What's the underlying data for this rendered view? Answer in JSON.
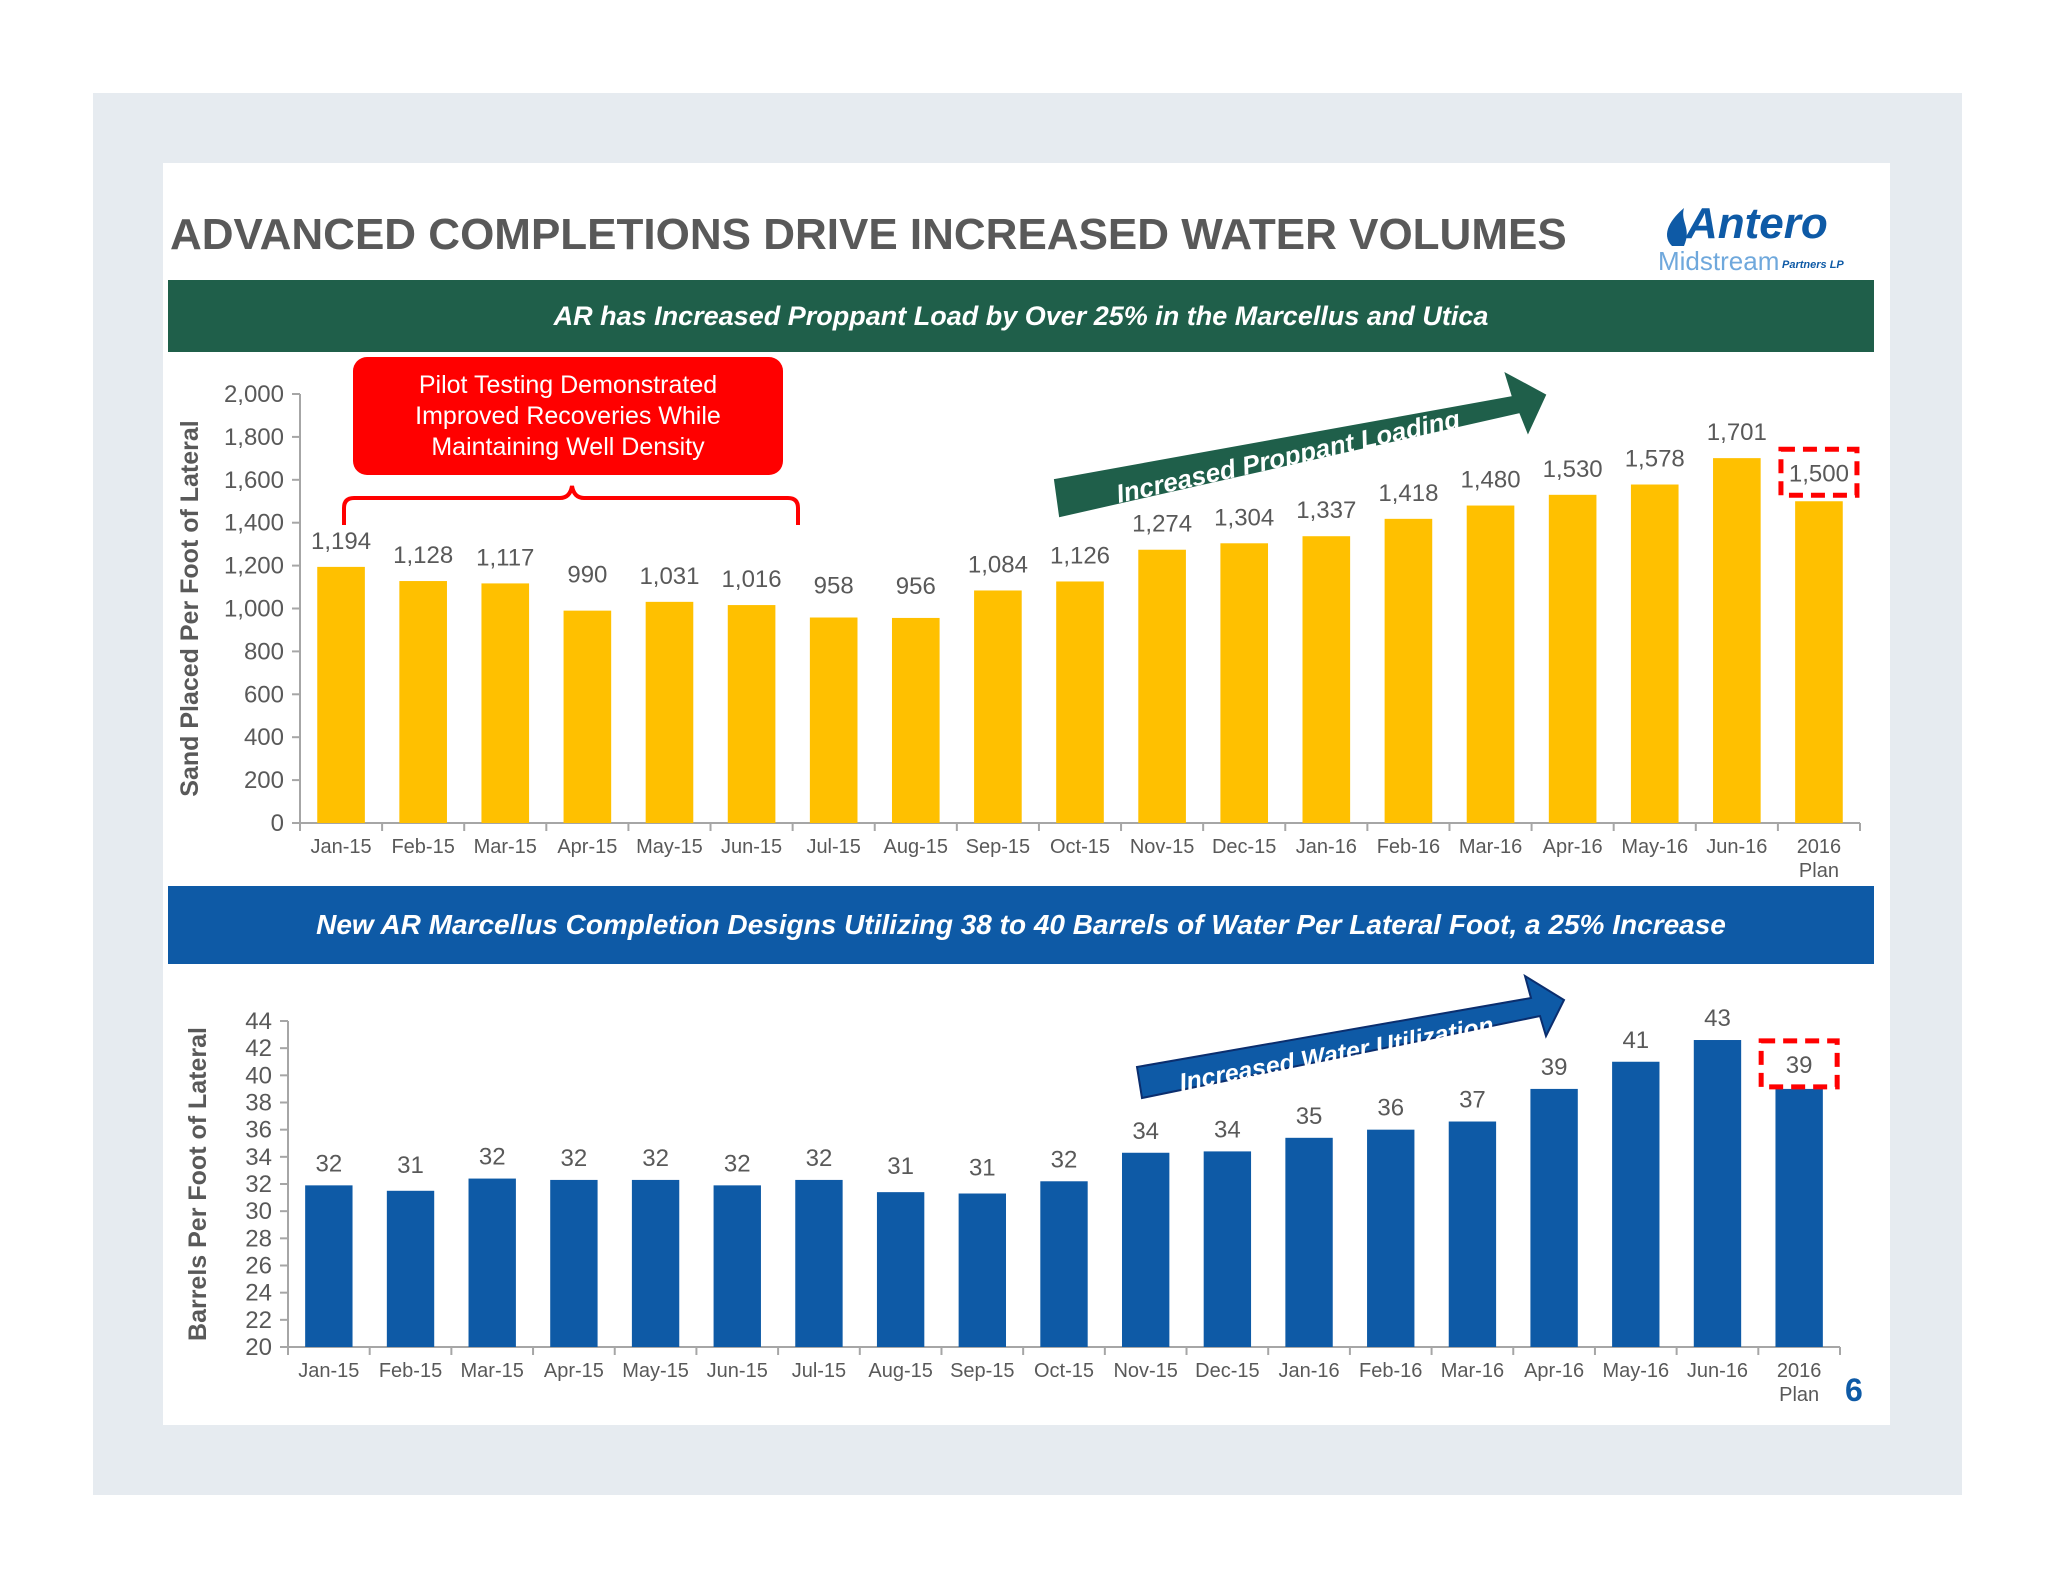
{
  "title": "ADVANCED COMPLETIONS DRIVE INCREASED WATER VOLUMES",
  "logo": {
    "name": "Antero",
    "sub": "Midstream",
    "suffix": "Partners LP"
  },
  "banner_top": "AR has Increased Proppant Load by Over 25% in the Marcellus and Utica",
  "banner_bottom": "New AR Marcellus Completion Designs Utilizing 38 to 40 Barrels of Water Per Lateral Foot, a 25% Increase",
  "pilot_box": {
    "line1": "Pilot Testing Demonstrated",
    "line2": "Improved Recoveries While",
    "line3": "Maintaining Well Density"
  },
  "page_number": "6",
  "colors": {
    "sand": "#ffc000",
    "water": "#0e5aa6",
    "green": "#1f5f4a",
    "red": "#ff0000",
    "text": "#595959"
  },
  "chart_data": [
    {
      "type": "bar",
      "title": "",
      "ylabel": "Sand Placed Per Foot of Lateral",
      "xlabel": "",
      "ylim": [
        0,
        2000
      ],
      "yticks": [
        "0",
        "200",
        "400",
        "600",
        "800",
        "1,000",
        "1,200",
        "1,400",
        "1,600",
        "1,800",
        "2,000"
      ],
      "categories": [
        "Jan-15",
        "Feb-15",
        "Mar-15",
        "Apr-15",
        "May-15",
        "Jun-15",
        "Jul-15",
        "Aug-15",
        "Sep-15",
        "Oct-15",
        "Nov-15",
        "Dec-15",
        "Jan-16",
        "Feb-16",
        "Mar-16",
        "Apr-16",
        "May-16",
        "Jun-16",
        "2016 Plan"
      ],
      "values": [
        1194,
        1128,
        1117,
        990,
        1031,
        1016,
        958,
        956,
        1084,
        1126,
        1274,
        1304,
        1337,
        1418,
        1480,
        1530,
        1578,
        1701,
        1500
      ],
      "labels": [
        "1,194",
        "1,128",
        "1,117",
        "990",
        "1,031",
        "1,016",
        "958",
        "956",
        "1,084",
        "1,126",
        "1,274",
        "1,304",
        "1,337",
        "1,418",
        "1,480",
        "1,530",
        "1,578",
        "1,701",
        "1,500"
      ],
      "arrow_text": "Increased Proppant Loading"
    },
    {
      "type": "bar",
      "title": "",
      "ylabel": "Barrels Per Foot of Lateral",
      "xlabel": "",
      "ylim": [
        20,
        44
      ],
      "yticks": [
        "20",
        "22",
        "24",
        "26",
        "28",
        "30",
        "32",
        "34",
        "36",
        "38",
        "40",
        "42",
        "44"
      ],
      "categories": [
        "Jan-15",
        "Feb-15",
        "Mar-15",
        "Apr-15",
        "May-15",
        "Jun-15",
        "Jul-15",
        "Aug-15",
        "Sep-15",
        "Oct-15",
        "Nov-15",
        "Dec-15",
        "Jan-16",
        "Feb-16",
        "Mar-16",
        "Apr-16",
        "May-16",
        "Jun-16",
        "2016 Plan"
      ],
      "values": [
        31.9,
        31.5,
        32.4,
        32.3,
        32.3,
        31.9,
        32.3,
        31.4,
        31.3,
        32.2,
        34.3,
        34.4,
        35.4,
        36.0,
        36.6,
        39.0,
        41.0,
        42.6,
        39.0
      ],
      "labels": [
        "32",
        "31",
        "32",
        "32",
        "32",
        "32",
        "32",
        "31",
        "31",
        "32",
        "34",
        "34",
        "35",
        "36",
        "37",
        "39",
        "41",
        "43",
        "39"
      ],
      "arrow_text": "Increased  Water Utilization"
    }
  ]
}
